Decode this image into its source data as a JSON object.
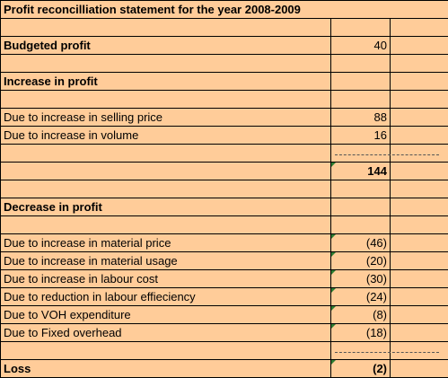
{
  "title": "Profit reconcilliation statement for the year 2008-2009",
  "budgeted": {
    "label": "Budgeted profit",
    "value": "40"
  },
  "increase": {
    "heading": "Increase in profit",
    "items": [
      {
        "label": "Due to increase in selling price",
        "value": "88"
      },
      {
        "label": "Due to increase in volume",
        "value": "16"
      }
    ],
    "total": "144"
  },
  "decrease": {
    "heading": "Decrease in profit",
    "items": [
      {
        "label": "Due to increase in material price",
        "value": "(46)"
      },
      {
        "label": "Due to increase in material usage",
        "value": "(20)"
      },
      {
        "label": "Due to increase in labour cost",
        "value": "(30)"
      },
      {
        "label": "Due to reduction in labour effieciency",
        "value": "(24)"
      },
      {
        "label": "Due to VOH expenditure",
        "value": "(8)"
      },
      {
        "label": "Due to Fixed overhead",
        "value": "(18)"
      }
    ]
  },
  "loss": {
    "label": "Loss",
    "value": "(2)"
  },
  "colors": {
    "background": "#ffcc99",
    "grid": "#000000",
    "error_marker": "#2e7d32"
  }
}
